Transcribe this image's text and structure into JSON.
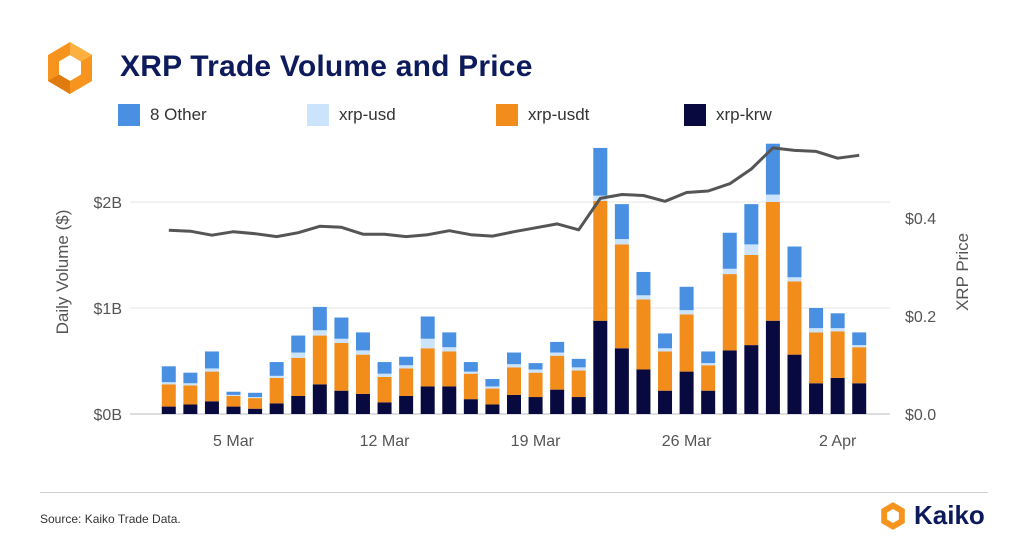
{
  "title": "XRP Trade Volume and Price",
  "source": "Source: Kaiko Trade Data.",
  "brand": "Kaiko",
  "colors": {
    "other": "#4a90e2",
    "usd": "#cce4fb",
    "usdt": "#f28c1b",
    "krw": "#07093f",
    "price": "#555555",
    "title": "#0d1b5c",
    "logo_orange": "#f7941d"
  },
  "chart_data": {
    "type": "bar",
    "stacked": true,
    "title": "XRP Trade Volume and Price",
    "ylabel": "Daily Volume ($)",
    "y2label": "XRP Price",
    "ylim": [
      0,
      2.5
    ],
    "y2lim": [
      0,
      0.55
    ],
    "y_ticks": [
      "$0B",
      "$1B",
      "$2B"
    ],
    "y2_ticks": [
      "$0.0",
      "$0.2",
      "$0.4"
    ],
    "x_tick_labels": [
      "5 Mar",
      "12 Mar",
      "19 Mar",
      "26 Mar",
      "2 Apr"
    ],
    "x_tick_index": [
      3,
      10,
      17,
      24,
      31
    ],
    "legend": [
      "8 Other",
      "xrp-usd",
      "xrp-usdt",
      "xrp-krw"
    ],
    "series": [
      {
        "name": "xrp-krw",
        "values": [
          0.07,
          0.09,
          0.12,
          0.07,
          0.05,
          0.1,
          0.17,
          0.28,
          0.22,
          0.19,
          0.11,
          0.17,
          0.26,
          0.26,
          0.14,
          0.09,
          0.18,
          0.16,
          0.23,
          0.16,
          0.88,
          0.62,
          0.42,
          0.22,
          0.4,
          0.22,
          0.6,
          0.65,
          0.88,
          0.56,
          0.29,
          0.34,
          0.29
        ]
      },
      {
        "name": "xrp-usdt",
        "values": [
          0.21,
          0.18,
          0.28,
          0.1,
          0.1,
          0.24,
          0.36,
          0.46,
          0.45,
          0.37,
          0.24,
          0.26,
          0.36,
          0.33,
          0.24,
          0.15,
          0.26,
          0.23,
          0.32,
          0.25,
          1.13,
          0.98,
          0.66,
          0.37,
          0.54,
          0.24,
          0.72,
          0.85,
          1.12,
          0.69,
          0.48,
          0.44,
          0.34
        ]
      },
      {
        "name": "xrp-usd",
        "values": [
          0.02,
          0.02,
          0.03,
          0.01,
          0.01,
          0.02,
          0.05,
          0.05,
          0.04,
          0.04,
          0.03,
          0.03,
          0.09,
          0.04,
          0.02,
          0.02,
          0.03,
          0.03,
          0.03,
          0.03,
          0.05,
          0.05,
          0.04,
          0.03,
          0.04,
          0.02,
          0.05,
          0.1,
          0.07,
          0.04,
          0.04,
          0.03,
          0.02
        ]
      },
      {
        "name": "8 Other",
        "values": [
          0.15,
          0.1,
          0.16,
          0.03,
          0.04,
          0.13,
          0.16,
          0.22,
          0.2,
          0.17,
          0.11,
          0.08,
          0.21,
          0.14,
          0.09,
          0.07,
          0.11,
          0.06,
          0.1,
          0.08,
          0.45,
          0.33,
          0.22,
          0.14,
          0.22,
          0.11,
          0.34,
          0.38,
          0.48,
          0.29,
          0.19,
          0.14,
          0.12
        ]
      }
    ],
    "price": {
      "name": "XRP Price",
      "values": [
        0.375,
        0.373,
        0.365,
        0.372,
        0.368,
        0.362,
        0.37,
        0.383,
        0.381,
        0.367,
        0.367,
        0.362,
        0.366,
        0.374,
        0.366,
        0.363,
        0.372,
        0.38,
        0.388,
        0.376,
        0.44,
        0.448,
        0.446,
        0.434,
        0.452,
        0.455,
        0.47,
        0.5,
        0.543,
        0.538,
        0.536,
        0.522,
        0.528
      ]
    }
  }
}
